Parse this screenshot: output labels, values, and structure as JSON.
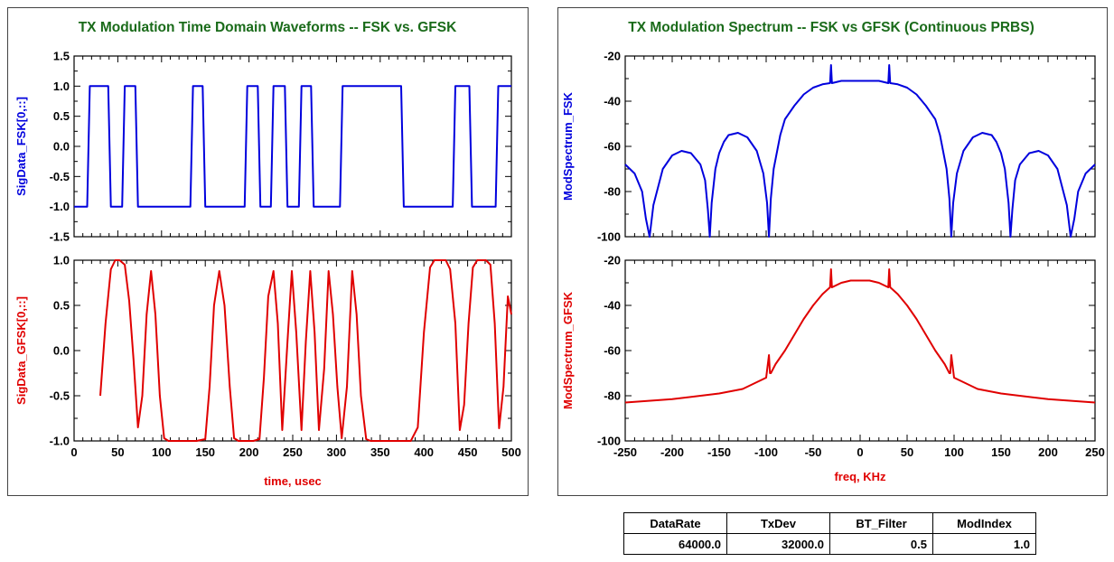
{
  "chart_data": [
    {
      "type": "line",
      "title": "TX Modulation Time Domain Waveforms -- FSK vs. GFSK",
      "xlabel": "time, usec",
      "xlim": [
        0,
        500
      ],
      "x_ticks": [
        "0",
        "50",
        "100",
        "150",
        "200",
        "250",
        "300",
        "350",
        "400",
        "450",
        "500"
      ],
      "panels": [
        {
          "ylabel": "SigData_FSK[0,::]",
          "ylim": [
            -1.5,
            1.5
          ],
          "y_ticks": [
            "1.5",
            "1.0",
            "0.5",
            "0.0",
            "-0.5",
            "-1.0",
            "-1.5"
          ],
          "series": [
            {
              "color": "#0000dd",
              "x": [
                0,
                15,
                18,
                39,
                42,
                55,
                58,
                70,
                73,
                133,
                136,
                147,
                150,
                195,
                198,
                210,
                213,
                225,
                228,
                241,
                244,
                257,
                260,
                271,
                274,
                304,
                307,
                374,
                377,
                433,
                436,
                452,
                455,
                482,
                485,
                500
              ],
              "y": [
                -1,
                -1,
                1,
                1,
                -1,
                -1,
                1,
                1,
                -1,
                -1,
                1,
                1,
                -1,
                -1,
                1,
                1,
                -1,
                -1,
                1,
                1,
                -1,
                -1,
                1,
                1,
                -1,
                -1,
                1,
                1,
                -1,
                -1,
                1,
                1,
                -1,
                -1,
                1,
                1
              ]
            }
          ]
        },
        {
          "ylabel": "SigData_GFSK[0,::]",
          "ylim": [
            -1.0,
            1.0
          ],
          "y_ticks": [
            "1.0",
            "0.5",
            "0.0",
            "-0.5",
            "-1.0"
          ],
          "series": [
            {
              "color": "#e00000",
              "x": [
                30,
                36,
                42,
                47,
                52,
                58,
                63,
                68,
                73,
                78,
                83,
                88,
                93,
                98,
                103,
                108,
                113,
                125,
                140,
                150,
                155,
                160,
                166,
                172,
                178,
                183,
                188,
                198,
                205,
                212,
                217,
                222,
                228,
                233,
                238,
                244,
                249,
                254,
                260,
                265,
                270,
                275,
                280,
                286,
                291,
                296,
                301,
                306,
                312,
                318,
                323,
                328,
                334,
                339,
                344,
                350,
                360,
                375,
                385,
                393,
                400,
                407,
                412,
                418,
                425,
                430,
                436,
                441,
                446,
                451,
                456,
                461,
                466,
                471,
                476,
                481,
                486,
                491,
                496,
                500
              ],
              "y": [
                -0.5,
                0.3,
                0.9,
                1.0,
                1.0,
                0.95,
                0.55,
                -0.1,
                -0.85,
                -0.5,
                0.4,
                0.88,
                0.4,
                -0.5,
                -0.97,
                -1.0,
                -1.0,
                -1.0,
                -1.0,
                -0.98,
                -0.4,
                0.5,
                0.88,
                0.5,
                -0.4,
                -0.97,
                -1.0,
                -1.0,
                -1.0,
                -0.98,
                -0.3,
                0.6,
                0.88,
                0.3,
                -0.88,
                0.1,
                0.88,
                0.2,
                -0.88,
                0.1,
                0.88,
                0.2,
                -0.88,
                -0.2,
                0.88,
                0.4,
                -0.4,
                -0.97,
                -0.4,
                0.88,
                0.4,
                -0.5,
                -0.98,
                -1.0,
                -1.0,
                -1.0,
                -1.0,
                -1.0,
                -1.0,
                -0.85,
                0.2,
                0.92,
                1.0,
                1.0,
                1.0,
                0.9,
                0.3,
                -0.88,
                -0.6,
                0.3,
                0.92,
                1.0,
                1.0,
                1.0,
                0.95,
                0.3,
                -0.86,
                -0.4,
                0.6,
                0.4
              ]
            }
          ]
        }
      ],
      "grid": false
    },
    {
      "type": "line",
      "title": "TX Modulation Spectrum -- FSK vs GFSK (Continuous PRBS)",
      "xlabel": "freq, KHz",
      "xlim": [
        -250,
        250
      ],
      "x_ticks": [
        "-250",
        "-200",
        "-150",
        "-100",
        "-50",
        "0",
        "50",
        "100",
        "150",
        "200",
        "250"
      ],
      "panels": [
        {
          "ylabel": "ModSpectrum_FSK",
          "ylim": [
            -100,
            -20
          ],
          "y_ticks": [
            "-20",
            "-40",
            "-60",
            "-80",
            "-100"
          ],
          "series": [
            {
              "color": "#0000dd",
              "x": [
                -250,
                -240,
                -232,
                -228,
                -224,
                -220,
                -210,
                -200,
                -190,
                -180,
                -170,
                -165,
                -162,
                -160,
                -158,
                -154,
                -150,
                -145,
                -140,
                -130,
                -120,
                -110,
                -103,
                -99,
                -97,
                -95,
                -92,
                -85,
                -80,
                -70,
                -60,
                -50,
                -40,
                -32,
                -31,
                -30,
                -20,
                -10,
                0,
                10,
                20,
                30,
                31,
                32,
                40,
                50,
                60,
                70,
                80,
                85,
                92,
                95,
                97,
                99,
                103,
                110,
                120,
                130,
                140,
                145,
                150,
                154,
                158,
                160,
                162,
                165,
                170,
                180,
                190,
                200,
                210,
                220,
                224,
                228,
                232,
                240,
                250
              ],
              "y": [
                -68,
                -72,
                -80,
                -92,
                -100,
                -86,
                -70,
                -64,
                -62,
                -63,
                -68,
                -75,
                -88,
                -100,
                -85,
                -70,
                -63,
                -58,
                -55,
                -54,
                -56,
                -62,
                -72,
                -85,
                -100,
                -83,
                -70,
                -55,
                -48,
                -42,
                -37,
                -34,
                -32.5,
                -32,
                -24,
                -32,
                -31,
                -31,
                -31,
                -31,
                -31,
                -32,
                -24,
                -32,
                -32.5,
                -34,
                -37,
                -42,
                -48,
                -55,
                -70,
                -83,
                -100,
                -85,
                -72,
                -62,
                -56,
                -54,
                -55,
                -58,
                -63,
                -70,
                -85,
                -100,
                -88,
                -75,
                -68,
                -63,
                -62,
                -64,
                -70,
                -86,
                -100,
                -92,
                -80,
                -72,
                -68
              ]
            }
          ]
        },
        {
          "ylabel": "ModSpectrum_GFSK",
          "ylim": [
            -100,
            -20
          ],
          "y_ticks": [
            "-20",
            "-40",
            "-60",
            "-80",
            "-100"
          ],
          "series": [
            {
              "color": "#e00000",
              "x": [
                -250,
                -200,
                -150,
                -125,
                -110,
                -100,
                -97,
                -96,
                -95,
                -90,
                -80,
                -70,
                -60,
                -50,
                -40,
                -32,
                -31,
                -30,
                -20,
                -10,
                0,
                10,
                20,
                30,
                31,
                32,
                40,
                50,
                60,
                70,
                80,
                90,
                95,
                96,
                97,
                100,
                110,
                125,
                150,
                200,
                250
              ],
              "y": [
                -83,
                -81.5,
                -79,
                -77,
                -74,
                -72,
                -62,
                -70,
                -70,
                -66,
                -60,
                -53,
                -46,
                -40,
                -35,
                -32,
                -24,
                -32,
                -30,
                -29,
                -29,
                -29,
                -30,
                -32,
                -24,
                -32,
                -35,
                -40,
                -46,
                -53,
                -60,
                -66,
                -70,
                -70,
                -62,
                -72,
                -74,
                -77,
                -79,
                -81.5,
                -83
              ]
            }
          ]
        }
      ],
      "grid": false
    }
  ],
  "params_table": {
    "headers": [
      "DataRate",
      "TxDev",
      "BT_Filter",
      "ModIndex"
    ],
    "values": [
      "64000.0",
      "32000.0",
      "0.5",
      "1.0"
    ]
  },
  "colors": {
    "title": "#1a6b1a",
    "fsk": "#0000dd",
    "gfsk": "#e00000"
  }
}
